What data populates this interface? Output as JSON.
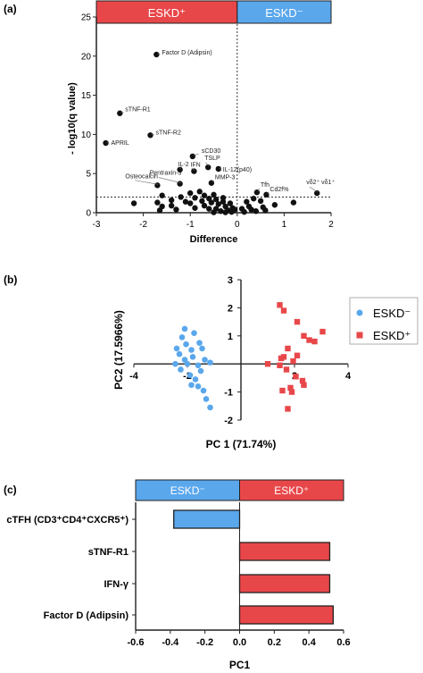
{
  "panel_labels": [
    "(a)",
    "(b)",
    "(c)"
  ],
  "colors": {
    "eskd_plus": "#e8474a",
    "eskd_minus": "#5aa7ec",
    "points_a": "#111111"
  },
  "chart_data": [
    {
      "type": "scatter",
      "panel": "(a)",
      "xlabel": "Difference",
      "ylabel": "- log10(q value)",
      "xlim": [
        -3,
        2
      ],
      "ylim": [
        0,
        25
      ],
      "xticks": [
        "-3",
        "-2",
        "-1",
        "0",
        "1",
        "2"
      ],
      "yticks": [
        "0",
        "5",
        "10",
        "15",
        "20",
        "25"
      ],
      "header_bars": [
        {
          "label": "ESKD⁺",
          "color": "#e8474a",
          "x_range": [
            -3,
            0
          ]
        },
        {
          "label": "ESKD⁻",
          "color": "#5aa7ec",
          "x_range": [
            0,
            2
          ]
        }
      ],
      "threshold_y": 2.0,
      "threshold_x": 0,
      "labeled_points": [
        {
          "label": "Factor D (Adipsin)",
          "x": -1.72,
          "y": 20.2
        },
        {
          "label": "sTNF-R1",
          "x": -2.5,
          "y": 12.7
        },
        {
          "label": "sTNF-R2",
          "x": -1.85,
          "y": 9.9
        },
        {
          "label": "APRIL",
          "x": -2.8,
          "y": 8.9
        },
        {
          "label": "sCD30",
          "x": -0.95,
          "y": 7.2
        },
        {
          "label": "IL-2",
          "x": -1.22,
          "y": 5.5
        },
        {
          "label": "IFN",
          "x": -0.92,
          "y": 5.3
        },
        {
          "label": "TSLP",
          "x": -0.62,
          "y": 5.8
        },
        {
          "label": "IL-12(p40)",
          "x": -0.4,
          "y": 5.6
        },
        {
          "label": "Osteocalcin",
          "x": -1.7,
          "y": 3.5
        },
        {
          "label": "Pentraxin-3",
          "x": -1.22,
          "y": 3.7
        },
        {
          "label": "MMP-3",
          "x": -0.55,
          "y": 3.8
        },
        {
          "label": "Tfh",
          "x": 0.42,
          "y": 2.6
        },
        {
          "label": "Cd2f%",
          "x": 0.62,
          "y": 2.3
        },
        {
          "label": "vδ2⁺ vδ1⁺",
          "x": 1.7,
          "y": 2.5
        }
      ],
      "unlabeled_points": [
        [
          -1.6,
          2.2
        ],
        [
          -1.4,
          1.6
        ],
        [
          -1.2,
          2.0
        ],
        [
          -1.7,
          1.3
        ],
        [
          -1.6,
          0.8
        ],
        [
          -1.4,
          0.9
        ],
        [
          -1.3,
          0.4
        ],
        [
          -1.1,
          1.4
        ],
        [
          -1.0,
          2.5
        ],
        [
          -0.9,
          1.9
        ],
        [
          -1.0,
          1.2
        ],
        [
          -0.9,
          0.6
        ],
        [
          -0.8,
          2.7
        ],
        [
          -0.7,
          2.2
        ],
        [
          -0.75,
          1.5
        ],
        [
          -0.7,
          0.9
        ],
        [
          -0.6,
          1.8
        ],
        [
          -0.55,
          1.3
        ],
        [
          -0.6,
          0.5
        ],
        [
          -0.5,
          2.3
        ],
        [
          -0.45,
          1.7
        ],
        [
          -0.4,
          1.1
        ],
        [
          -0.45,
          0.5
        ],
        [
          -0.35,
          0.2
        ],
        [
          -0.3,
          1.9
        ],
        [
          -0.3,
          1.4
        ],
        [
          -0.25,
          0.8
        ],
        [
          -0.2,
          0.3
        ],
        [
          -0.15,
          1.2
        ],
        [
          -0.1,
          0.6
        ],
        [
          -0.12,
          0.1
        ],
        [
          -0.05,
          0.4
        ],
        [
          -0.25,
          0.05
        ],
        [
          -0.5,
          0.05
        ],
        [
          -2.2,
          1.2
        ],
        [
          -1.65,
          0.3
        ],
        [
          0.2,
          1.4
        ],
        [
          0.25,
          0.8
        ],
        [
          0.3,
          0.4
        ],
        [
          0.35,
          1.8
        ],
        [
          0.4,
          0.2
        ],
        [
          0.15,
          0.1
        ],
        [
          0.5,
          1.5
        ],
        [
          0.55,
          0.7
        ],
        [
          0.6,
          0.3
        ],
        [
          0.8,
          1.0
        ],
        [
          1.2,
          1.3
        ],
        [
          0.1,
          0.5
        ]
      ]
    },
    {
      "type": "scatter",
      "panel": "(b)",
      "xlabel": "PC 1 (71.74%)",
      "ylabel": "PC2 (17.5966%)",
      "xlim": [
        -4,
        4
      ],
      "ylim": [
        -2,
        3
      ],
      "xticks": [
        "-4",
        "-2",
        "2",
        "4"
      ],
      "yticks": [
        "-2",
        "-1",
        "1",
        "2",
        "3"
      ],
      "legend_position": "top-right",
      "series": [
        {
          "name": "ESKD⁻",
          "marker": "circle",
          "color": "#5aa7ec",
          "points": [
            [
              -2.1,
              1.25
            ],
            [
              -1.75,
              1.1
            ],
            [
              -2.2,
              0.95
            ],
            [
              -2.05,
              0.7
            ],
            [
              -1.85,
              0.5
            ],
            [
              -1.55,
              0.75
            ],
            [
              -1.45,
              0.55
            ],
            [
              -2.4,
              0.55
            ],
            [
              -2.3,
              0.35
            ],
            [
              -2.1,
              0.15
            ],
            [
              -1.8,
              0.25
            ],
            [
              -1.6,
              -0.05
            ],
            [
              -1.35,
              0.15
            ],
            [
              -1.15,
              0.05
            ],
            [
              -1.5,
              -0.25
            ],
            [
              -2.45,
              0.0
            ],
            [
              -2.25,
              -0.2
            ],
            [
              -1.9,
              -0.4
            ],
            [
              -1.7,
              -0.55
            ],
            [
              -1.6,
              -0.8
            ],
            [
              -1.4,
              -0.95
            ],
            [
              -1.3,
              -1.25
            ],
            [
              -1.15,
              -1.55
            ],
            [
              -1.85,
              -0.75
            ],
            [
              -2.0,
              0.0
            ]
          ]
        },
        {
          "name": "ESKD⁺",
          "marker": "square",
          "color": "#e8474a",
          "points": [
            [
              1.45,
              2.1
            ],
            [
              1.6,
              1.9
            ],
            [
              2.1,
              1.5
            ],
            [
              2.35,
              1.0
            ],
            [
              2.55,
              0.85
            ],
            [
              2.75,
              0.8
            ],
            [
              3.05,
              1.15
            ],
            [
              1.75,
              0.55
            ],
            [
              1.6,
              0.25
            ],
            [
              1.95,
              0.1
            ],
            [
              2.1,
              0.3
            ],
            [
              1.45,
              -0.05
            ],
            [
              1.7,
              -0.2
            ],
            [
              2.05,
              -0.45
            ],
            [
              2.3,
              -0.6
            ],
            [
              1.85,
              -0.85
            ],
            [
              1.9,
              -1.0
            ],
            [
              1.55,
              -0.95
            ],
            [
              1.0,
              0.0
            ],
            [
              1.75,
              -1.6
            ],
            [
              1.5,
              0.2
            ],
            [
              2.35,
              -0.75
            ]
          ]
        }
      ]
    },
    {
      "type": "bar",
      "panel": "(c)",
      "orientation": "horizontal",
      "xlabel": "PC1",
      "xlim": [
        -0.6,
        0.6
      ],
      "xticks": [
        "-0.6",
        "-0.4",
        "-0.2",
        "0.0",
        "0.2",
        "0.4",
        "0.6"
      ],
      "header_bars": [
        {
          "label": "ESKD⁻",
          "color": "#5aa7ec",
          "x_range": [
            -0.6,
            0.0
          ]
        },
        {
          "label": "ESKD⁺",
          "color": "#e8474a",
          "x_range": [
            0.0,
            0.6
          ]
        }
      ],
      "categories": [
        "cTFH (CD3⁺CD4⁺CXCR5⁺)",
        "sTNF-R1",
        "IFN-γ",
        "Factor D (Adipsin)"
      ],
      "values": [
        -0.38,
        0.52,
        0.52,
        0.54
      ]
    }
  ]
}
